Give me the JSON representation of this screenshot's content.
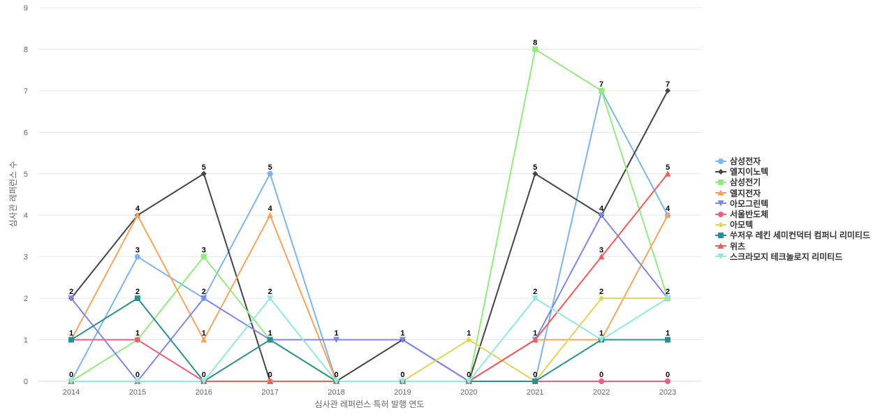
{
  "chart_data": {
    "type": "line",
    "title": "",
    "xlabel": "심사관 레퍼런스 특허 발행 연도",
    "ylabel": "심사관 레퍼런스 수",
    "x": [
      "2014",
      "2015",
      "2016",
      "2017",
      "2018",
      "2019",
      "2020",
      "2021",
      "2022",
      "2023"
    ],
    "ylim": [
      0,
      9
    ],
    "yticks": [
      0,
      1,
      2,
      3,
      4,
      5,
      6,
      7,
      8,
      9
    ],
    "grid": true,
    "legend_position": "right",
    "series": [
      {
        "name": "삼성전자",
        "color": "#7cb5ec",
        "marker": "circle",
        "values": [
          0,
          3,
          2,
          5,
          0,
          0,
          0,
          0,
          7,
          4
        ]
      },
      {
        "name": "엘지이노텍",
        "color": "#434348",
        "marker": "diamond",
        "values": [
          2,
          4,
          5,
          0,
          0,
          1,
          0,
          5,
          4,
          7
        ]
      },
      {
        "name": "삼성전기",
        "color": "#90ed7d",
        "marker": "square",
        "values": [
          0,
          1,
          3,
          1,
          0,
          0,
          0,
          8,
          7,
          2
        ]
      },
      {
        "name": "엘지전자",
        "color": "#f7a35c",
        "marker": "triangle",
        "values": [
          1,
          4,
          1,
          4,
          0,
          0,
          0,
          1,
          1,
          4
        ]
      },
      {
        "name": "아모그린텍",
        "color": "#8085e9",
        "marker": "triangle-down",
        "values": [
          2,
          0,
          2,
          1,
          1,
          1,
          0,
          1,
          4,
          2
        ]
      },
      {
        "name": "서울반도체",
        "color": "#f15c80",
        "marker": "circle",
        "values": [
          1,
          1,
          0,
          0,
          0,
          0,
          0,
          0,
          0,
          0
        ]
      },
      {
        "name": "아모텍",
        "color": "#e4d354",
        "marker": "diamond",
        "values": [
          0,
          0,
          0,
          0,
          0,
          0,
          1,
          0,
          2,
          2
        ]
      },
      {
        "name": "쑤저우 레킨 세미컨덕터 컴퍼니 리미티드",
        "color": "#2b908f",
        "marker": "square",
        "values": [
          1,
          2,
          0,
          1,
          0,
          0,
          0,
          0,
          1,
          1
        ]
      },
      {
        "name": "위츠",
        "color": "#f45b5b",
        "marker": "triangle",
        "values": [
          0,
          0,
          0,
          0,
          0,
          0,
          0,
          1,
          3,
          5
        ]
      },
      {
        "name": "스크라모지 테크놀로지 리미티드",
        "color": "#91e8e1",
        "marker": "triangle-down",
        "values": [
          0,
          0,
          0,
          2,
          0,
          0,
          0,
          2,
          1,
          2
        ]
      }
    ]
  }
}
